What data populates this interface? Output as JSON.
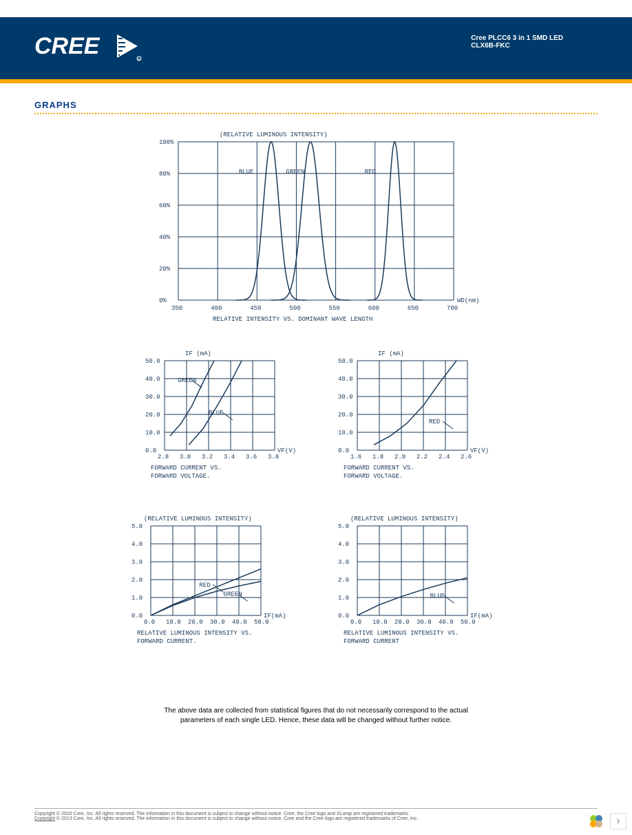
{
  "header": {
    "logo_text": "CREE",
    "title_line1": "Cree PLCC6 3 in 1 SMD LED",
    "title_line2": "CLX6B-FKC"
  },
  "section_title": "GRAPHS",
  "chart1": {
    "title": "(RELATIVE LUMINOUS INTENSITY)",
    "x_axis_label": "WD(nm)",
    "subtitle": "RELATIVE INTENSITY  VS. DOMINANT WAVE LENGTH",
    "y_ticks": [
      "0%",
      "20%",
      "40%",
      "60%",
      "80%",
      "100%"
    ],
    "x_ticks": [
      "350",
      "400",
      "450",
      "500",
      "550",
      "600",
      "650",
      "700"
    ],
    "x_range": [
      350,
      700
    ],
    "y_range": [
      0,
      100
    ],
    "series": [
      {
        "label": "BLUE",
        "label_x": 440,
        "peak": 468,
        "width": 18
      },
      {
        "label": "GREEN",
        "label_x": 500,
        "peak": 518,
        "width": 20
      },
      {
        "label": "RED",
        "label_x": 600,
        "peak": 625,
        "width": 14
      }
    ],
    "line_color": "#1a3a5a",
    "bg": "#ffffff"
  },
  "chart2": {
    "y_title": "IF (mA)",
    "x_title": "VF(V)",
    "subtitle1": "FORWARD CURRENT VS.",
    "subtitle2": "FORWARD VOLTAGE.",
    "y_ticks": [
      "0.0",
      "10.0",
      "20.0",
      "30.0",
      "40.0",
      "50.0"
    ],
    "x_ticks": [
      "2.8",
      "3.0",
      "3.2",
      "3.4",
      "3.6",
      "3.8"
    ],
    "x_range": [
      2.8,
      3.8
    ],
    "y_range": [
      0,
      50
    ],
    "series": [
      {
        "label": "GREEN",
        "label_pos": [
          2.92,
          38
        ],
        "points": [
          [
            2.85,
            8
          ],
          [
            2.95,
            15
          ],
          [
            3.05,
            25
          ],
          [
            3.15,
            38
          ],
          [
            3.25,
            50
          ]
        ]
      },
      {
        "label": "BLUE",
        "label_pos": [
          3.2,
          20
        ],
        "points": [
          [
            3.02,
            3
          ],
          [
            3.15,
            12
          ],
          [
            3.28,
            25
          ],
          [
            3.4,
            38
          ],
          [
            3.5,
            50
          ]
        ]
      }
    ],
    "line_color": "#1a3a5a"
  },
  "chart3": {
    "y_title": "IF (mA)",
    "x_title": "VF(V)",
    "subtitle1": "FORWARD CURRENT VS.",
    "subtitle2": "FORWARD VOLTAGE.",
    "y_ticks": [
      "0.0",
      "10.0",
      "20.0",
      "30.0",
      "40.0",
      "50.0"
    ],
    "x_ticks": [
      "1.6",
      "1.8",
      "2.0",
      "2.2",
      "2.4",
      "2.6"
    ],
    "x_range": [
      1.6,
      2.6
    ],
    "y_range": [
      0,
      50
    ],
    "series": [
      {
        "label": "RED",
        "label_pos": [
          2.25,
          15
        ],
        "points": [
          [
            1.75,
            3
          ],
          [
            1.9,
            8
          ],
          [
            2.05,
            15
          ],
          [
            2.2,
            25
          ],
          [
            2.35,
            38
          ],
          [
            2.5,
            50
          ]
        ]
      }
    ],
    "line_color": "#1a3a5a"
  },
  "chart4": {
    "title": "(RELATIVE LUMINOUS INTENSITY)",
    "x_title": "IF(mA)",
    "subtitle1": "RELATIVE LUMINOUS INTENSITY VS.",
    "subtitle2": "FORWARD CURRENT.",
    "y_ticks": [
      "0.0",
      "1.0",
      "2.0",
      "3.0",
      "4.0",
      "5.0"
    ],
    "x_ticks": [
      "0.0",
      "10.0",
      "20.0",
      "30.0",
      "40.0",
      "50.0"
    ],
    "x_range": [
      0,
      50
    ],
    "y_range": [
      0,
      5
    ],
    "series": [
      {
        "label": "RED",
        "label_pos": [
          22,
          1.6
        ],
        "points": [
          [
            0,
            0
          ],
          [
            10,
            0.6
          ],
          [
            20,
            1.1
          ],
          [
            30,
            1.6
          ],
          [
            40,
            2.1
          ],
          [
            50,
            2.6
          ]
        ]
      },
      {
        "label": "GREEN",
        "label_pos": [
          33,
          1.1
        ],
        "points": [
          [
            0,
            0
          ],
          [
            10,
            0.55
          ],
          [
            20,
            1.0
          ],
          [
            30,
            1.35
          ],
          [
            40,
            1.65
          ],
          [
            50,
            1.9
          ]
        ]
      }
    ],
    "line_color": "#1a3a5a"
  },
  "chart5": {
    "title": "(RELATIVE LUMINOUS INTENSITY)",
    "x_title": "IF(mA)",
    "subtitle1": "RELATIVE LUMINOUS INTENSITY VS.",
    "subtitle2": "FORWARD CURRENT",
    "y_ticks": [
      "0.0",
      "1.0",
      "2.0",
      "3.0",
      "4.0",
      "5.0"
    ],
    "x_ticks": [
      "0.0",
      "10.0",
      "20.0",
      "30.0",
      "40.0",
      "50.0"
    ],
    "x_range": [
      0,
      50
    ],
    "y_range": [
      0,
      5
    ],
    "series": [
      {
        "label": "BLUE",
        "label_pos": [
          33,
          1.0
        ],
        "points": [
          [
            0,
            0
          ],
          [
            10,
            0.6
          ],
          [
            20,
            1.05
          ],
          [
            30,
            1.45
          ],
          [
            40,
            1.8
          ],
          [
            50,
            2.1
          ]
        ]
      }
    ],
    "line_color": "#1a3a5a"
  },
  "disclaimer": {
    "line1": "The above data are collected from statistical figures that do not necessarily correspond to the actual",
    "line2": "parameters of each single LED. Hence, these data will be changed without further notice."
  },
  "footer": {
    "line1": "Copyright © 2010 Cree, Inc. All rights reserved. The information in this document is subject to change without notice. Cree, the Cree logo and XLamp are registered trademarks",
    "line2_a": "Copyright",
    "line2_b": " © 2013 Cree, Inc. All rights reserved. The information in this document is subject to change without notice. Cree and the Cree logo are registered trademarks of Cree, Inc."
  }
}
